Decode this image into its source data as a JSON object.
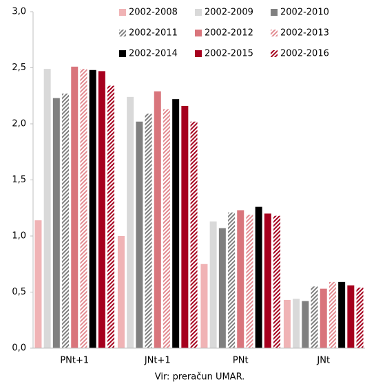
{
  "chart_data": {
    "type": "bar",
    "categories": [
      "PNt+1",
      "JNt+1",
      "PNt",
      "JNt"
    ],
    "series": [
      {
        "name": "2002-2008",
        "color": "#f0b3b5",
        "hatch": false,
        "values": [
          1.14,
          1.0,
          0.75,
          0.43
        ]
      },
      {
        "name": "2002-2009",
        "color": "#d9d9d9",
        "hatch": false,
        "values": [
          2.49,
          2.24,
          1.13,
          0.44
        ]
      },
      {
        "name": "2002-2010",
        "color": "#808080",
        "hatch": false,
        "values": [
          2.23,
          2.02,
          1.07,
          0.42
        ]
      },
      {
        "name": "2002-2011",
        "color": "#7f7f7f",
        "hatch": true,
        "values": [
          2.27,
          2.09,
          1.21,
          0.55
        ]
      },
      {
        "name": "2002-2012",
        "color": "#d9757c",
        "hatch": false,
        "values": [
          2.51,
          2.29,
          1.23,
          0.53
        ]
      },
      {
        "name": "2002-2013",
        "color": "#e28a90",
        "hatch": true,
        "values": [
          2.49,
          2.13,
          1.19,
          0.59
        ]
      },
      {
        "name": "2002-2014",
        "color": "#000000",
        "hatch": false,
        "values": [
          2.48,
          2.22,
          1.26,
          0.59
        ]
      },
      {
        "name": "2002-2015",
        "color": "#a6001e",
        "hatch": false,
        "values": [
          2.47,
          2.16,
          1.2,
          0.56
        ]
      },
      {
        "name": "2002-2016",
        "color": "#a6001e",
        "hatch": true,
        "values": [
          2.34,
          2.02,
          1.18,
          0.54
        ]
      }
    ],
    "ylim": [
      0,
      3
    ],
    "yticks": [
      {
        "value": 0,
        "label": "0,0"
      },
      {
        "value": 0.5,
        "label": "0,5"
      },
      {
        "value": 1,
        "label": "1,0"
      },
      {
        "value": 1.5,
        "label": "1,5"
      },
      {
        "value": 2,
        "label": "2,0"
      },
      {
        "value": 2.5,
        "label": "2,5"
      },
      {
        "value": 3,
        "label": "3,0"
      }
    ],
    "grid": false,
    "legend": "top-right",
    "source": "Vir: preračun UMAR."
  }
}
